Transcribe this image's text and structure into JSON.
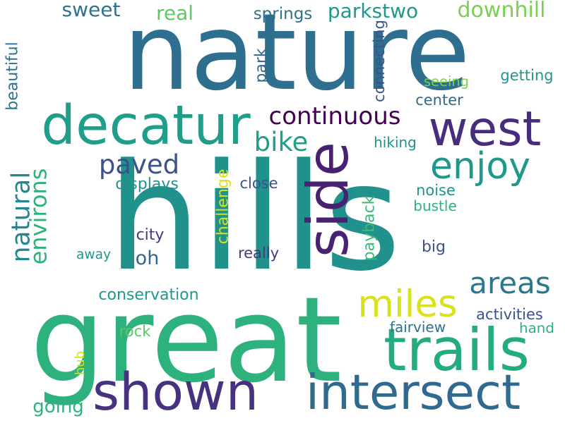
{
  "words": [
    {
      "id": "nature",
      "text": "nature",
      "color": "#2e6e8e",
      "orientation": "horizontal"
    },
    {
      "id": "hills",
      "text": "hills",
      "color": "#21918c",
      "orientation": "horizontal"
    },
    {
      "id": "great",
      "text": "great",
      "color": "#2db27d",
      "orientation": "horizontal"
    },
    {
      "id": "decatur",
      "text": "decatur",
      "color": "#1f9e89",
      "orientation": "horizontal"
    },
    {
      "id": "west",
      "text": "west",
      "color": "#472d7b",
      "orientation": "horizontal"
    },
    {
      "id": "side",
      "text": "side",
      "color": "#482173",
      "orientation": "vertical"
    },
    {
      "id": "shown",
      "text": "shown",
      "color": "#46327e",
      "orientation": "horizontal"
    },
    {
      "id": "intersect",
      "text": "intersect",
      "color": "#306a8e",
      "orientation": "horizontal"
    },
    {
      "id": "trails",
      "text": "trails",
      "color": "#25ab82",
      "orientation": "horizontal"
    },
    {
      "id": "enjoy",
      "text": "enjoy",
      "color": "#1f988b",
      "orientation": "horizontal"
    },
    {
      "id": "miles",
      "text": "miles",
      "color": "#d8e219",
      "orientation": "horizontal"
    },
    {
      "id": "continuous",
      "text": "continuous",
      "color": "#440154",
      "orientation": "horizontal"
    },
    {
      "id": "areas",
      "text": "areas",
      "color": "#2a788e",
      "orientation": "horizontal"
    },
    {
      "id": "paved",
      "text": "paved",
      "color": "#3b528b",
      "orientation": "horizontal"
    },
    {
      "id": "bike",
      "text": "bike",
      "color": "#1f9e89",
      "orientation": "horizontal"
    },
    {
      "id": "natural",
      "text": "natural",
      "color": "#24868e",
      "orientation": "vertical"
    },
    {
      "id": "environs",
      "text": "environs",
      "color": "#2db27d",
      "orientation": "vertical"
    },
    {
      "id": "beautiful",
      "text": "beautiful",
      "color": "#2c728e",
      "orientation": "vertical"
    },
    {
      "id": "sweet",
      "text": "sweet",
      "color": "#2c728e",
      "orientation": "horizontal"
    },
    {
      "id": "real",
      "text": "real",
      "color": "#5ec962",
      "orientation": "horizontal"
    },
    {
      "id": "parkstwo",
      "text": "parkstwo",
      "color": "#1f988b",
      "orientation": "horizontal"
    },
    {
      "id": "downhill",
      "text": "downhill",
      "color": "#7ad151",
      "orientation": "horizontal"
    },
    {
      "id": "springs",
      "text": "springs",
      "color": "#2c728e",
      "orientation": "horizontal"
    },
    {
      "id": "connecting",
      "text": "connecting",
      "color": "#3b528b",
      "orientation": "vertical"
    },
    {
      "id": "park",
      "text": "park",
      "color": "#31688e",
      "orientation": "vertical"
    },
    {
      "id": "seeing",
      "text": "seeing",
      "color": "#7ad151",
      "orientation": "horizontal"
    },
    {
      "id": "getting",
      "text": "getting",
      "color": "#1f988b",
      "orientation": "horizontal"
    },
    {
      "id": "center",
      "text": "center",
      "color": "#31688e",
      "orientation": "horizontal"
    },
    {
      "id": "hiking",
      "text": "hiking",
      "color": "#21918c",
      "orientation": "horizontal"
    },
    {
      "id": "challenge",
      "text": "challenge",
      "color": "#d8e219",
      "orientation": "vertical"
    },
    {
      "id": "payback",
      "text": "payback",
      "color": "#3bbb75",
      "orientation": "vertical"
    },
    {
      "id": "displays",
      "text": "displays",
      "color": "#21918c",
      "orientation": "horizontal"
    },
    {
      "id": "close",
      "text": "close",
      "color": "#3b528b",
      "orientation": "horizontal"
    },
    {
      "id": "noise",
      "text": "noise",
      "color": "#21918c",
      "orientation": "horizontal"
    },
    {
      "id": "bustle",
      "text": "bustle",
      "color": "#2db27d",
      "orientation": "horizontal"
    },
    {
      "id": "big",
      "text": "big",
      "color": "#3b528b",
      "orientation": "horizontal"
    },
    {
      "id": "city",
      "text": "city",
      "color": "#443983",
      "orientation": "horizontal"
    },
    {
      "id": "oh",
      "text": "oh",
      "color": "#31688e",
      "orientation": "horizontal"
    },
    {
      "id": "away",
      "text": "away",
      "color": "#1f988b",
      "orientation": "horizontal"
    },
    {
      "id": "really",
      "text": "really",
      "color": "#453781",
      "orientation": "horizontal"
    },
    {
      "id": "conservation",
      "text": "conservation",
      "color": "#1f988b",
      "orientation": "horizontal"
    },
    {
      "id": "activities",
      "text": "activities",
      "color": "#3b528b",
      "orientation": "horizontal"
    },
    {
      "id": "fairview",
      "text": "fairview",
      "color": "#2c728e",
      "orientation": "horizontal"
    },
    {
      "id": "hand",
      "text": "hand",
      "color": "#2db27d",
      "orientation": "horizontal"
    },
    {
      "id": "rock",
      "text": "rock",
      "color": "#5ec962",
      "orientation": "horizontal"
    },
    {
      "id": "hub",
      "text": "hub",
      "color": "#d8e219",
      "orientation": "vertical"
    },
    {
      "id": "going",
      "text": "going",
      "color": "#2db27d",
      "orientation": "horizontal"
    }
  ]
}
